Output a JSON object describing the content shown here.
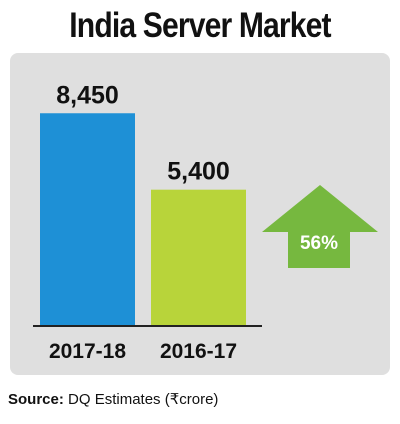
{
  "title": "India Server Market",
  "source": {
    "label": "Source:",
    "text": "DQ Estimates (₹crore)"
  },
  "growth": {
    "label": "56%",
    "color": "#76b83f"
  },
  "chart_data": {
    "type": "bar",
    "categories": [
      "2017-18",
      "2016-17"
    ],
    "values": [
      8450,
      5400
    ],
    "data_labels": [
      "8,450",
      "5,400"
    ],
    "colors": [
      "#1e90d6",
      "#b8d43a"
    ],
    "ylim": [
      0,
      8500
    ],
    "grid": false,
    "legend": "none",
    "title": "India Server Market"
  }
}
